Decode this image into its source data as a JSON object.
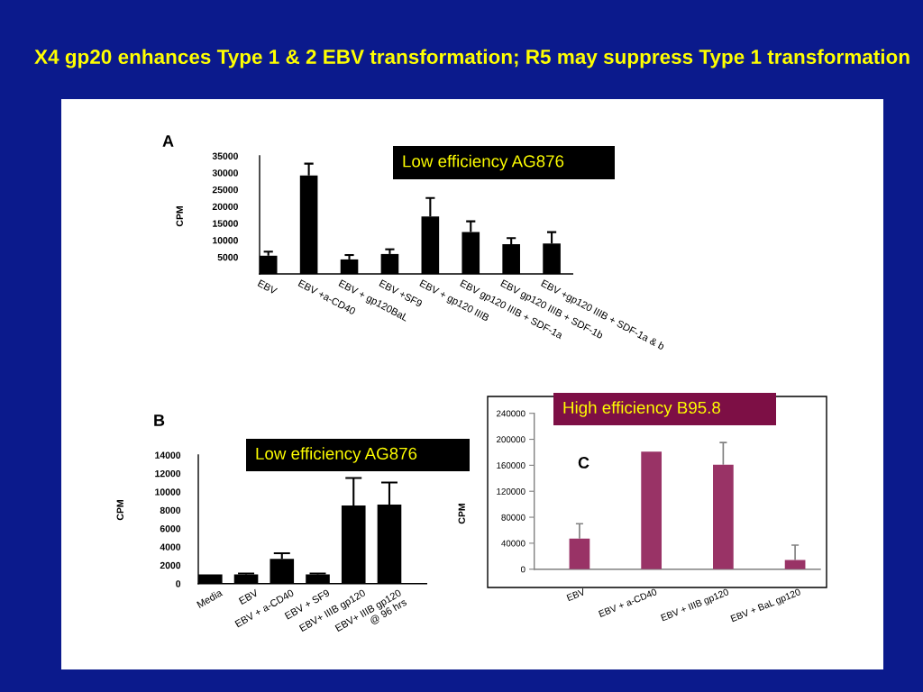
{
  "chart_data": [
    {
      "type": "bar",
      "title": "A",
      "ylabel": "CPM",
      "annotations": [
        "X4 gp20 enhances Type 1 & 2 EBV transformation; R5 may suppress Type 1 transformation",
        "Low efficiency AG876"
      ],
      "categories": [
        "EBV",
        "EBV +a-CD40",
        "EBV + gp120BaL",
        "EBV +SF9",
        "EBV + gp120 IIIB",
        "EBV gp120 IIIB + SDF-1a",
        "EBV gp120 IIIB + SDF-1b",
        "EBV +gp120 IIIB + SDF-1a & b"
      ],
      "values": [
        5400,
        29200,
        4300,
        5900,
        17000,
        12400,
        8800,
        9000
      ],
      "errors": [
        [
          5400,
          6600
        ],
        [
          29200,
          32700
        ],
        [
          4300,
          5600
        ],
        [
          5900,
          7300
        ],
        [
          17000,
          22500
        ],
        [
          12400,
          15600
        ],
        [
          8800,
          10600
        ],
        [
          9000,
          12400
        ]
      ],
      "color": "#000000",
      "ylim": [
        0,
        35000
      ],
      "yticks": [
        5000,
        10000,
        15000,
        20000,
        25000,
        30000,
        35000
      ]
    },
    {
      "type": "bar",
      "title": "B",
      "ylabel": "CPM",
      "annotations": [
        "Low efficiency AG876"
      ],
      "categories": [
        "Media",
        "EBV",
        "EBV + a-CD40",
        "EBV + SF9",
        "EBV+ IIIB gp120",
        "EBV+ IIIB gp120\n@ 96 hrs"
      ],
      "values": [
        1000,
        1000,
        2700,
        1000,
        8500,
        8600
      ],
      "errors": [
        null,
        [
          1000,
          1100
        ],
        [
          2700,
          3300
        ],
        [
          1000,
          1100
        ],
        [
          8500,
          11500
        ],
        [
          8600,
          11000
        ]
      ],
      "color": "#000000",
      "ylim": [
        0,
        14000
      ],
      "yticks": [
        0,
        2000,
        4000,
        6000,
        8000,
        10000,
        12000,
        14000
      ]
    },
    {
      "type": "bar",
      "title": "C",
      "ylabel": "CPM",
      "annotations": [
        "High efficiency B95.8"
      ],
      "categories": [
        "EBV",
        "EBV + a-CD40",
        "EBV + IIIB gp120",
        "EBV + BaL gp120"
      ],
      "values": [
        47000,
        181000,
        161000,
        14000
      ],
      "errors": [
        [
          47000,
          70000
        ],
        null,
        [
          161000,
          195000
        ],
        [
          14000,
          37000
        ]
      ],
      "color": "#993366",
      "ylim": [
        0,
        240000
      ],
      "yticks": [
        0,
        40000,
        80000,
        120000,
        160000,
        200000,
        240000
      ]
    }
  ]
}
